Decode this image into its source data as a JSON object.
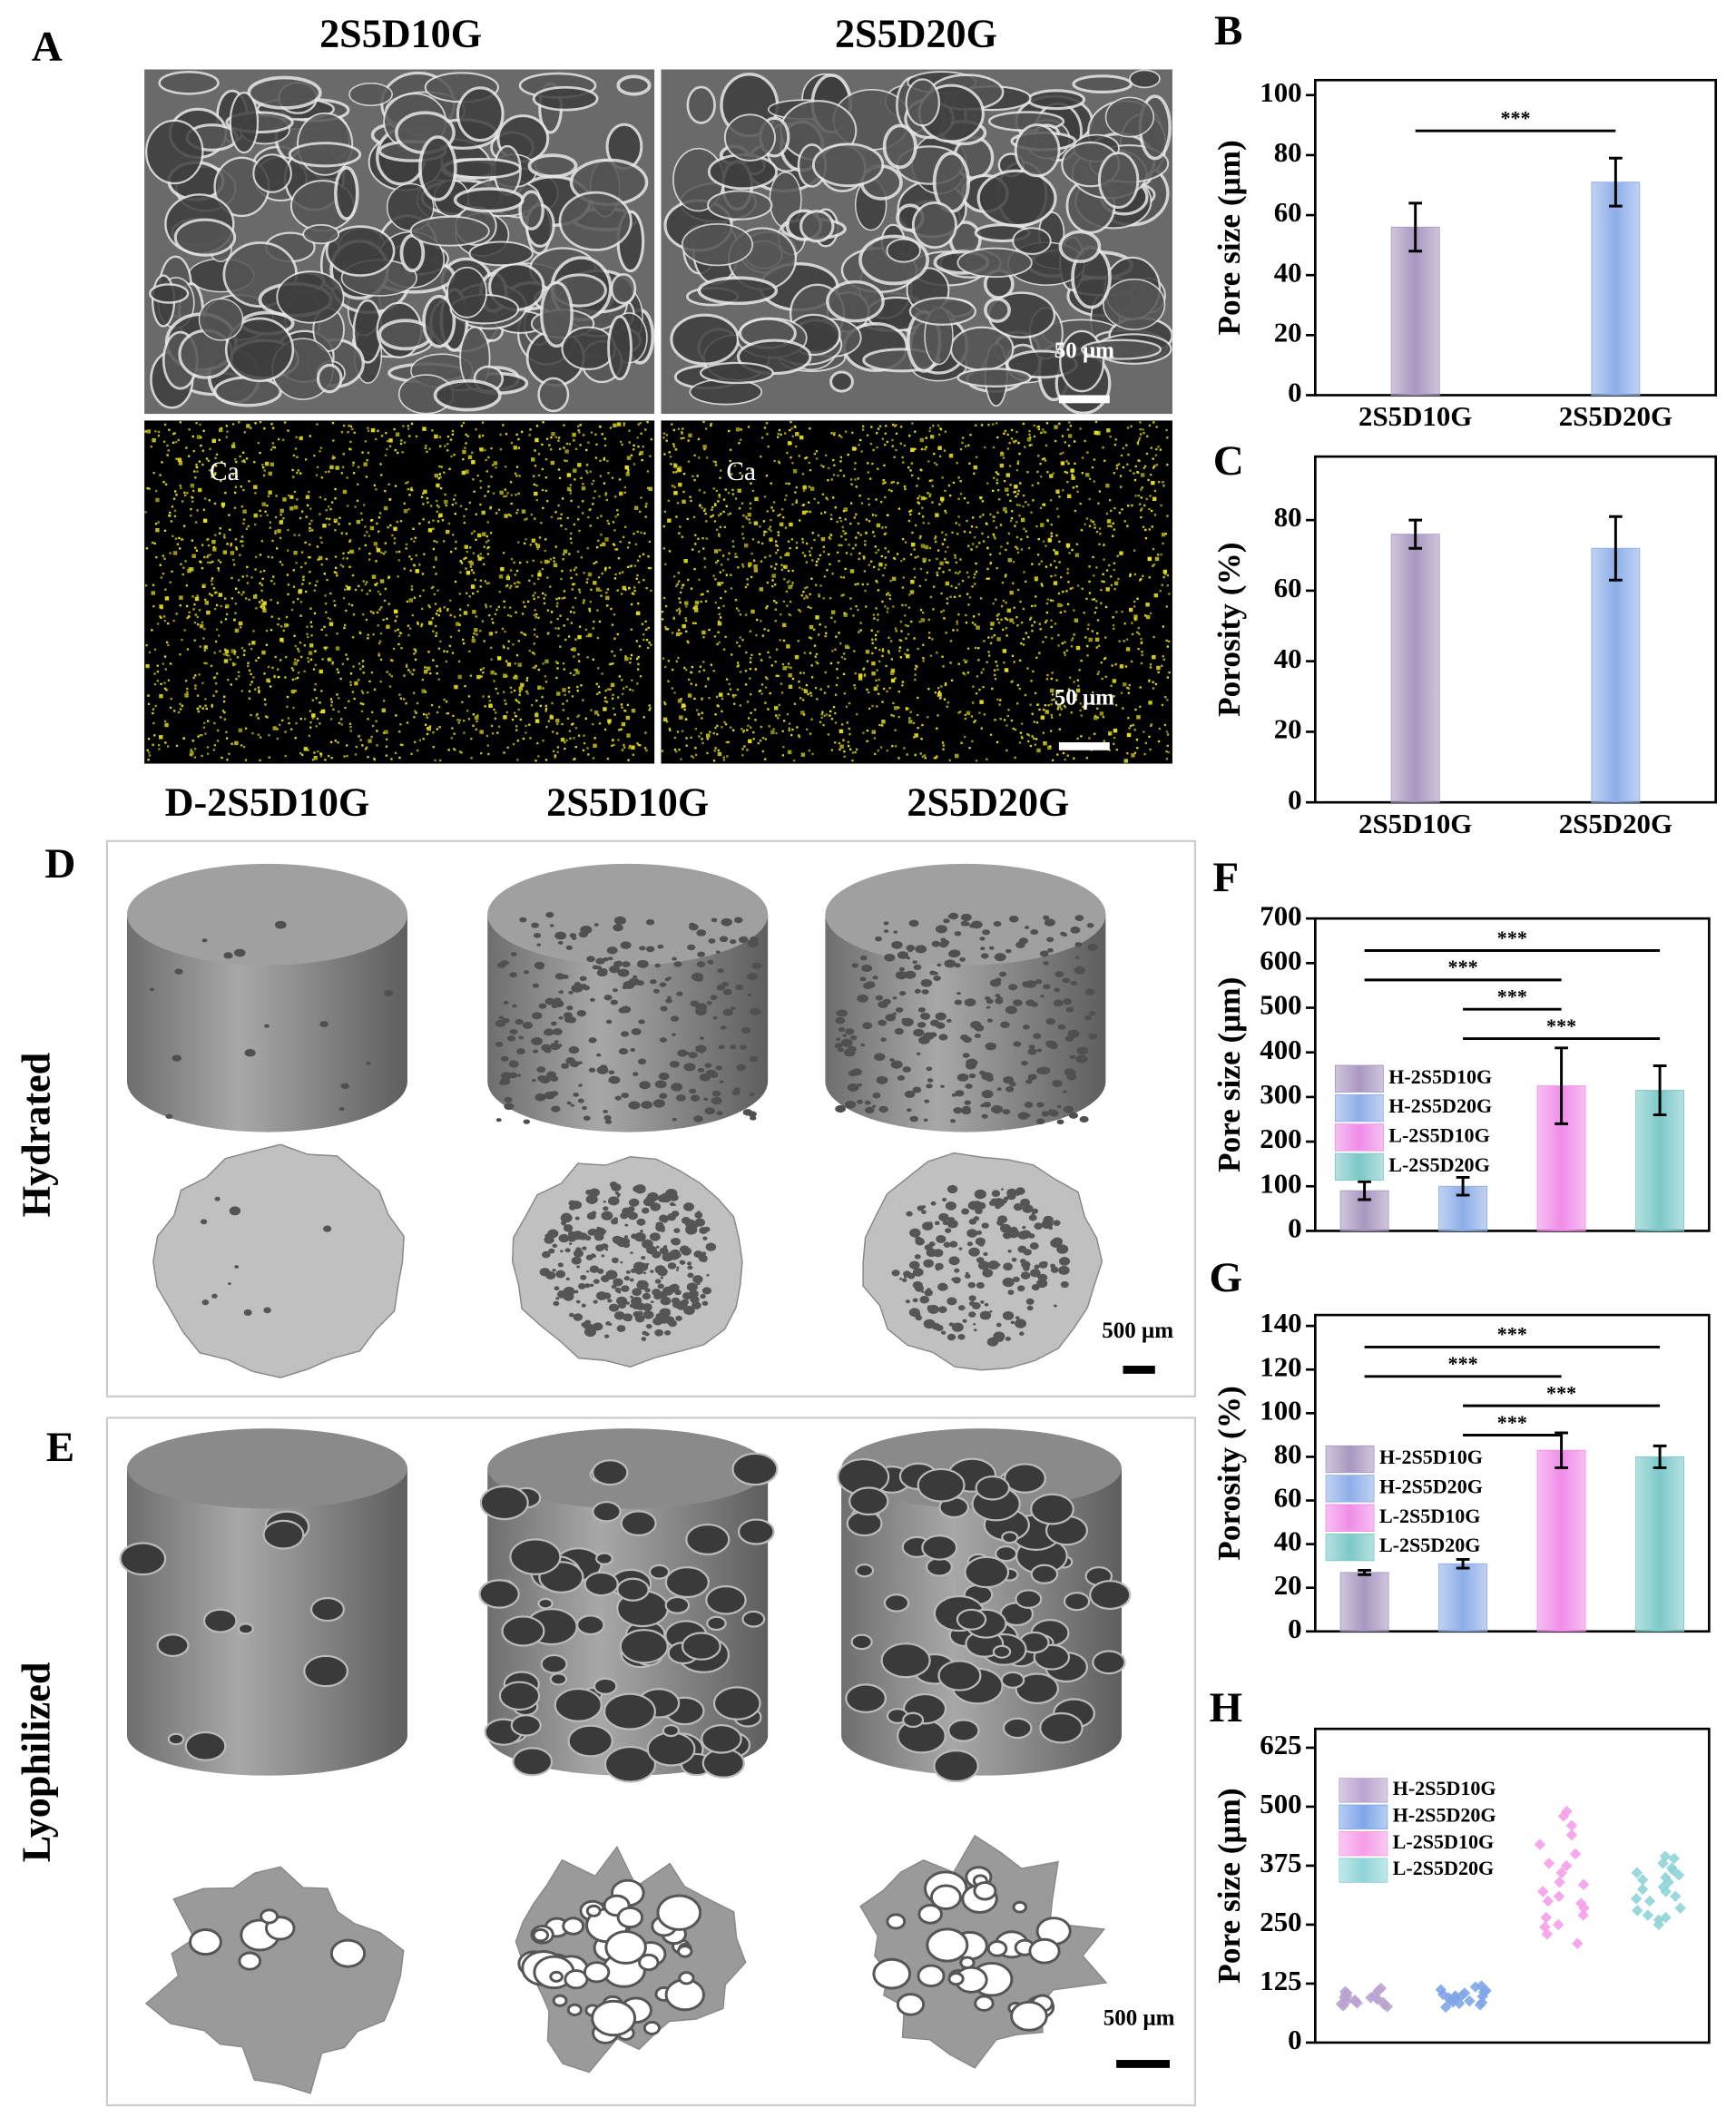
{
  "panel_labels": [
    "A",
    "B",
    "C",
    "D",
    "E",
    "F",
    "G",
    "H"
  ],
  "figure_a": {
    "columns": [
      "2S5D10G",
      "2S5D20G"
    ],
    "element": "Ca",
    "scale_bar": "50 μm"
  },
  "figure_de": {
    "columns": [
      "D-2S5D10G",
      "2S5D10G",
      "2S5D20G"
    ],
    "rows": [
      "Hydrated",
      "Lyophilized"
    ],
    "scale_bar": "500 μm"
  },
  "chart_data": [
    {
      "type": "bar",
      "ylabel": "Pore size (μm)",
      "categories": [
        "2S5D10G",
        "2S5D20G"
      ],
      "values": [
        56,
        71
      ],
      "errors": [
        8,
        8
      ],
      "colors": [
        "#a897c0",
        "#8eaee8"
      ],
      "ylim": [
        0,
        105
      ],
      "yticks": [
        0,
        20,
        40,
        60,
        80,
        100
      ],
      "significance": [
        {
          "pair": [
            0,
            1
          ],
          "label": "***"
        }
      ]
    },
    {
      "type": "bar",
      "ylabel": "Porosity (%)",
      "categories": [
        "2S5D10G",
        "2S5D20G"
      ],
      "values": [
        76,
        72
      ],
      "errors": [
        4,
        9
      ],
      "colors": [
        "#a897c0",
        "#8eaee8"
      ],
      "ylim": [
        0,
        98
      ],
      "yticks": [
        0,
        20,
        40,
        60,
        80
      ]
    },
    {
      "type": "bar",
      "ylabel": "Pore size (μm)",
      "ylim": [
        0,
        700
      ],
      "yticks": [
        0,
        100,
        200,
        300,
        400,
        500,
        600,
        700
      ],
      "series": [
        {
          "name": "H-2S5D10G",
          "color": "#a897c0",
          "values": [
            90
          ],
          "errors": [
            20
          ]
        },
        {
          "name": "H-2S5D20G",
          "color": "#8eaee8",
          "values": [
            100
          ],
          "errors": [
            20
          ]
        },
        {
          "name": "L-2S5D10G",
          "color": "#f08ce8",
          "values": [
            325
          ],
          "errors": [
            85
          ]
        },
        {
          "name": "L-2S5D20G",
          "color": "#7cc8c8",
          "values": [
            315
          ],
          "errors": [
            55
          ]
        }
      ],
      "significance": [
        {
          "pair": [
            0,
            3
          ],
          "label": "***"
        },
        {
          "pair": [
            0,
            2
          ],
          "label": "***"
        },
        {
          "pair": [
            1,
            2
          ],
          "label": "***"
        },
        {
          "pair": [
            1,
            3
          ],
          "label": "***"
        }
      ]
    },
    {
      "type": "bar",
      "ylabel": "Porosity (%)",
      "ylim": [
        0,
        145
      ],
      "yticks": [
        0,
        20,
        40,
        60,
        80,
        100,
        120,
        140
      ],
      "series": [
        {
          "name": "H-2S5D10G",
          "color": "#a897c0",
          "values": [
            27
          ],
          "errors": [
            1
          ]
        },
        {
          "name": "H-2S5D20G",
          "color": "#8eaee8",
          "values": [
            31
          ],
          "errors": [
            2
          ]
        },
        {
          "name": "L-2S5D10G",
          "color": "#f08ce8",
          "values": [
            83
          ],
          "errors": [
            8
          ]
        },
        {
          "name": "L-2S5D20G",
          "color": "#7cc8c8",
          "values": [
            80
          ],
          "errors": [
            5
          ]
        }
      ],
      "significance": [
        {
          "pair": [
            0,
            3
          ],
          "label": "***"
        },
        {
          "pair": [
            0,
            2
          ],
          "label": "***"
        },
        {
          "pair": [
            1,
            3
          ],
          "label": "***"
        },
        {
          "pair": [
            1,
            2
          ],
          "label": "***"
        }
      ]
    },
    {
      "type": "scatter",
      "ylabel": "Pore size (μm)",
      "ylim": [
        0,
        665
      ],
      "yticks": [
        0,
        125,
        250,
        375,
        500,
        625
      ],
      "series": [
        {
          "name": "H-2S5D10G",
          "color": "#b9a4d0",
          "values": [
            78,
            85,
            92,
            100,
            88,
            95,
            105,
            110,
            82,
            90,
            98,
            76,
            115,
            102,
            87,
            93,
            80,
            108,
            96,
            84
          ]
        },
        {
          "name": "H-2S5D20G",
          "color": "#7fa6e8",
          "values": [
            80,
            90,
            100,
            110,
            95,
            85,
            105,
            118,
            75,
            92,
            98,
            88,
            112,
            102,
            83,
            107,
            94,
            120,
            86,
            99
          ]
        },
        {
          "name": "L-2S5D10G",
          "color": "#f59ee8",
          "values": [
            210,
            230,
            250,
            270,
            285,
            300,
            320,
            340,
            360,
            380,
            400,
            420,
            440,
            460,
            480,
            490,
            265,
            310,
            335,
            295,
            245,
            375
          ]
        },
        {
          "name": "L-2S5D20G",
          "color": "#8fd4d8",
          "values": [
            250,
            265,
            280,
            300,
            310,
            320,
            330,
            340,
            350,
            360,
            370,
            380,
            390,
            395,
            270,
            305,
            325,
            345,
            285,
            355,
            365,
            260
          ]
        }
      ]
    }
  ]
}
